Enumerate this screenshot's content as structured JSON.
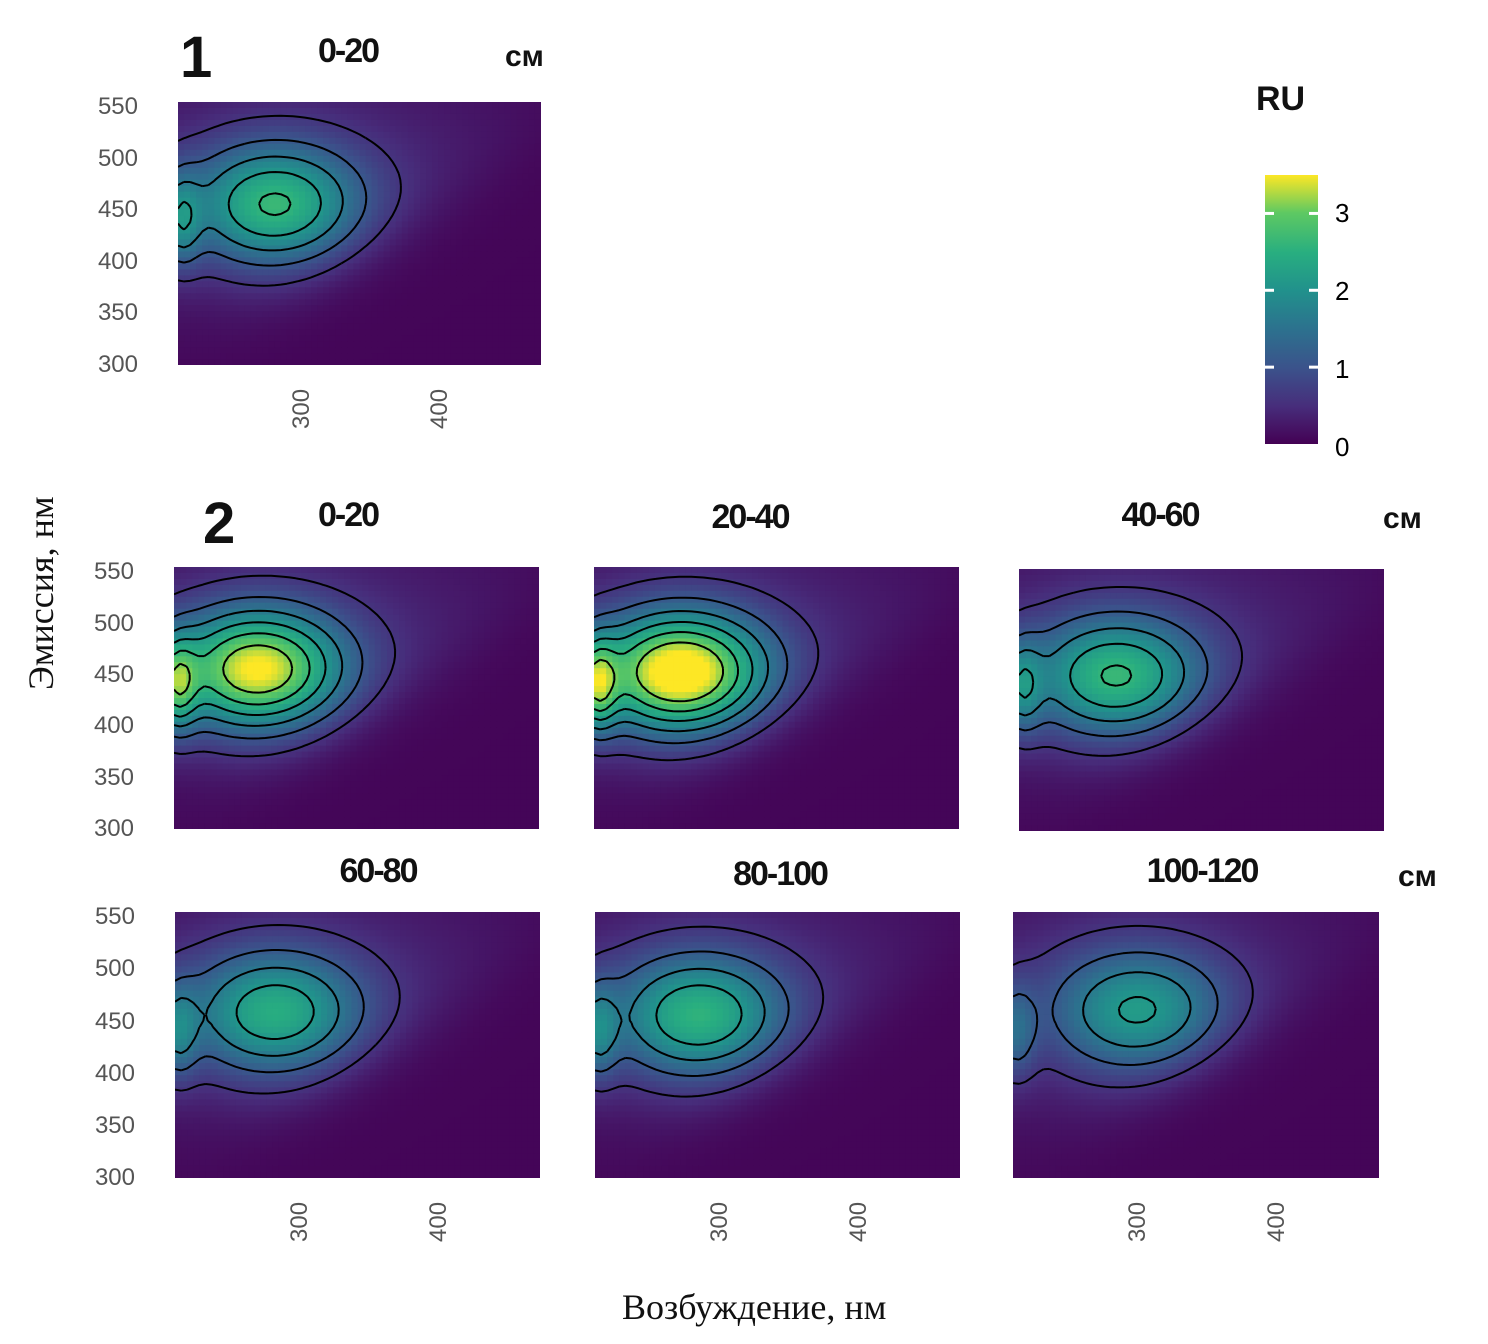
{
  "chart_data": {
    "type": "heatmap",
    "xlabel": "Возбуждение, нм",
    "ylabel": "Эмиссия, нм",
    "x_ticks": [
      "300",
      "400"
    ],
    "y_ticks": [
      "550",
      "500",
      "450",
      "400",
      "350",
      "300"
    ],
    "xlim": [
      210,
      473
    ],
    "ylim": [
      300,
      555
    ],
    "unit_label": "см",
    "groups": [
      "1",
      "2"
    ],
    "legend": {
      "title": "RU",
      "ticks": [
        "0",
        "1",
        "2",
        "3"
      ],
      "range": [
        0,
        3.5
      ],
      "placement": "right"
    },
    "contour_levels": [
      0.6,
      1.1,
      1.6,
      2.1,
      2.6,
      3.1
    ],
    "panels": [
      {
        "group": "1",
        "title": "0-20",
        "peak_ex": 280,
        "peak_em": 455,
        "max_ru": 2.2
      },
      {
        "group": "2",
        "title": "0-20",
        "peak_ex": 270,
        "peak_em": 455,
        "max_ru": 3.1
      },
      {
        "group": "2",
        "title": "20-40",
        "peak_ex": 272,
        "peak_em": 452,
        "max_ru": 3.4
      },
      {
        "group": "2",
        "title": "40-60",
        "peak_ex": 280,
        "peak_em": 450,
        "max_ru": 2.2
      },
      {
        "group": "2",
        "title": "60-80",
        "peak_ex": 282,
        "peak_em": 458,
        "max_ru": 2.0
      },
      {
        "group": "2",
        "title": "80-100",
        "peak_ex": 285,
        "peak_em": 455,
        "max_ru": 2.1
      },
      {
        "group": "2",
        "title": "100-120",
        "peak_ex": 300,
        "peak_em": 460,
        "max_ru": 1.7
      }
    ]
  }
}
